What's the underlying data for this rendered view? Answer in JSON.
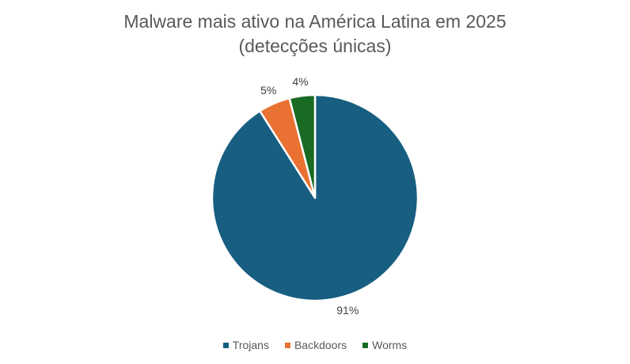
{
  "chart_data": {
    "type": "pie",
    "title": "Malware mais ativo na América Latina em 2025",
    "subtitle": "(detecções únicas)",
    "categories": [
      "Trojans",
      "Backdoors",
      "Worms"
    ],
    "values": [
      91,
      5,
      4
    ],
    "unit": "%",
    "colors": [
      "#175E81",
      "#E97132",
      "#196B24"
    ],
    "data_labels": [
      "91%",
      "5%",
      "4%"
    ],
    "legend_position": "bottom",
    "start_angle": "12 o'clock, clockwise"
  },
  "title": {
    "line1": "Malware mais ativo na América Latina em 2025",
    "line2": "(detecções únicas)"
  },
  "legend": {
    "items": [
      {
        "label": "Trojans",
        "color": "#175E81"
      },
      {
        "label": "Backdoors",
        "color": "#E97132"
      },
      {
        "label": "Worms",
        "color": "#196B24"
      }
    ]
  }
}
